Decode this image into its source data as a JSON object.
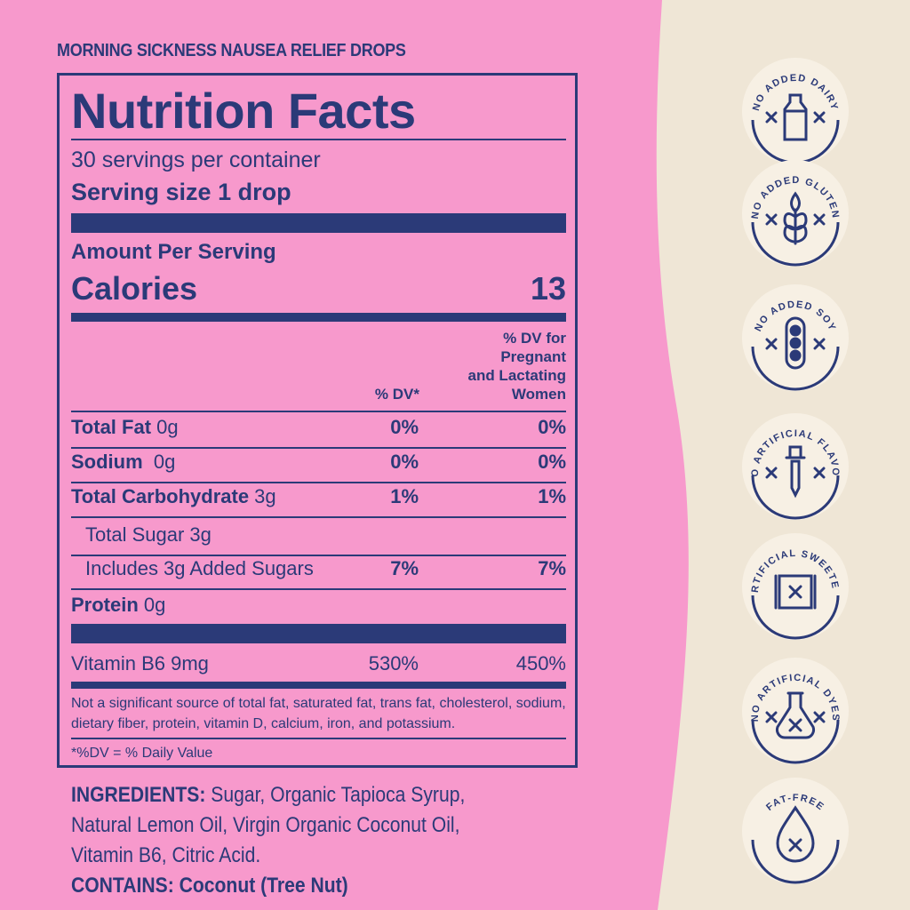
{
  "colors": {
    "pink": "#f799cc",
    "navy": "#2b3a78",
    "cream": "#efe6d6",
    "badge_bg": "#f7f0e4"
  },
  "product_title": "MORNING SICKNESS NAUSEA RELIEF DROPS",
  "label": {
    "heading": "Nutrition Facts",
    "servings": "30 servings per container",
    "serving_size": "Serving size 1 drop",
    "amount_per_serving": "Amount Per Serving",
    "calories_label": "Calories",
    "calories_value": "13",
    "col_dv": "% DV*",
    "col_dv_preg": [
      "% DV for",
      "Pregnant",
      "and Lactating",
      "Women"
    ],
    "rows": [
      {
        "name": "Total Fat",
        "amount": " 0g",
        "dv": "0%",
        "dv_preg": "0%"
      },
      {
        "name": "Sodium",
        "amount": "  0g",
        "dv": "0%",
        "dv_preg": "0%"
      },
      {
        "name": "Total Carbohydrate",
        "amount": " 3g",
        "dv": "1%",
        "dv_preg": "1%"
      },
      {
        "name": "",
        "amount": "Total Sugar 3g",
        "dv": "",
        "dv_preg": ""
      },
      {
        "name": "",
        "amount": "Includes 3g Added Sugars",
        "dv": "7%",
        "dv_preg": "7%"
      },
      {
        "name": "Protein",
        "amount": " 0g",
        "dv": "",
        "dv_preg": ""
      }
    ],
    "vitamin": {
      "name": "Vitamin B6 9mg",
      "dv": "530%",
      "dv_preg": "450%"
    },
    "footnote": "Not a significant source of total fat, saturated fat, trans fat, cholesterol, sodium, dietary fiber, protein, vitamin D, calcium, iron, and potassium.",
    "dv_note": "*%DV = % Daily Value"
  },
  "ingredients": {
    "label": "INGREDIENTS:",
    "text": " Sugar, Organic Tapioca Syrup, Natural Lemon Oil, Virgin Organic Coconut Oil, Vitamin B6, Citric Acid.",
    "contains_label": "CONTAINS:",
    "contains_text": " Coconut (Tree Nut)"
  },
  "badges": [
    {
      "text": "NO ADDED DAIRY",
      "icon": "milk-bottle-icon"
    },
    {
      "text": "NO ADDED GLUTEN",
      "icon": "wheat-icon"
    },
    {
      "text": "NO ADDED SOY",
      "icon": "soybean-icon"
    },
    {
      "text": "NO ARTIFICIAL FLAVOR",
      "icon": "dropper-icon"
    },
    {
      "text": "NO ARTIFICIAL SWEETENERS",
      "icon": "candy-wrapper-icon"
    },
    {
      "text": "NO ARTIFICIAL DYES",
      "icon": "flask-icon"
    },
    {
      "text": "FAT-FREE",
      "icon": "drop-icon"
    }
  ]
}
